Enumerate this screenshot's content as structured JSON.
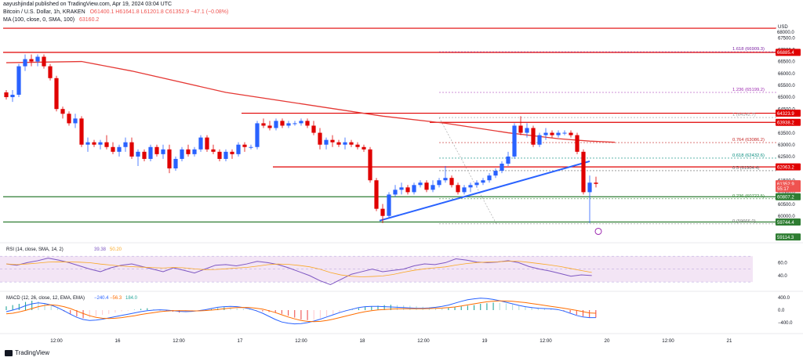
{
  "meta": {
    "author_line": "aayushjindal published on TradingView.com, Apr 19, 2024 03:04 UTC",
    "footer": "TradingView"
  },
  "header": {
    "symbol": "Bitcoin / U.S. Dollar, 1h, KRAKEN",
    "ohlc": "O61400.1 H61641.8 L61201.8 C61352.9 −47.1 (−0.08%)",
    "ma_label": "MA (100, close, 0, SMA, 100)",
    "ma_value": "63160.2",
    "colors": {
      "up": "#26a69a",
      "down": "#ef5350",
      "text": "#131722",
      "blue": "#2962ff"
    }
  },
  "chart_data": {
    "type": "candlestick",
    "title": "Bitcoin / U.S. Dollar, 1h, KRAKEN",
    "ylim": [
      59200,
      68100
    ],
    "x_ticks": [
      "12:00",
      "16",
      "12:00",
      "17",
      "12:00",
      "18",
      "12:00",
      "19",
      "12:00",
      "20",
      "12:00",
      "21"
    ],
    "y_ticks": [
      60000,
      60500,
      61000,
      61500,
      62000,
      62500,
      63000,
      63500,
      64000,
      64500,
      65000,
      65500,
      66000,
      66500,
      67000,
      67500
    ],
    "candles": [
      [
        65200,
        65300,
        64900,
        65000
      ],
      [
        65000,
        65300,
        64800,
        65100
      ],
      [
        65100,
        66400,
        65000,
        66300
      ],
      [
        66300,
        66800,
        66100,
        66600
      ],
      [
        66600,
        66800,
        66300,
        66500
      ],
      [
        66500,
        66800,
        66300,
        66700
      ],
      [
        66700,
        66800,
        66200,
        66300
      ],
      [
        66300,
        66400,
        65700,
        65800
      ],
      [
        65800,
        65900,
        64400,
        64500
      ],
      [
        64500,
        64600,
        64100,
        64300
      ],
      [
        64300,
        64400,
        63800,
        63900
      ],
      [
        63900,
        64300,
        63700,
        64100
      ],
      [
        64100,
        64200,
        62900,
        63000
      ],
      [
        63000,
        63300,
        62700,
        63100
      ],
      [
        63100,
        63200,
        62900,
        63000
      ],
      [
        63000,
        63200,
        62800,
        63100
      ],
      [
        63100,
        63400,
        62800,
        62900
      ],
      [
        62900,
        63100,
        62600,
        62700
      ],
      [
        62700,
        63000,
        62500,
        62900
      ],
      [
        62900,
        63300,
        62700,
        63100
      ],
      [
        63100,
        63300,
        62400,
        62500
      ],
      [
        62500,
        62800,
        62100,
        62700
      ],
      [
        62700,
        62800,
        62300,
        62400
      ],
      [
        62400,
        63000,
        62300,
        62900
      ],
      [
        62900,
        63000,
        62500,
        62600
      ],
      [
        62600,
        63000,
        62400,
        62800
      ],
      [
        62800,
        63000,
        61800,
        62000
      ],
      [
        62000,
        62500,
        61900,
        62400
      ],
      [
        62400,
        62900,
        62300,
        62800
      ],
      [
        62800,
        63000,
        62500,
        62600
      ],
      [
        62600,
        62900,
        62500,
        62800
      ],
      [
        62800,
        63400,
        62700,
        63300
      ],
      [
        63300,
        63400,
        62700,
        62800
      ],
      [
        62800,
        63000,
        62600,
        62700
      ],
      [
        62700,
        62800,
        62300,
        62400
      ],
      [
        62400,
        62800,
        62300,
        62700
      ],
      [
        62700,
        62800,
        62400,
        62600
      ],
      [
        62600,
        63100,
        62500,
        63000
      ],
      [
        63000,
        63100,
        62700,
        62900
      ],
      [
        62900,
        63000,
        62800,
        62900
      ],
      [
        62900,
        64000,
        62800,
        63900
      ],
      [
        63900,
        64100,
        63700,
        63800
      ],
      [
        63800,
        64000,
        63600,
        63700
      ],
      [
        63700,
        64100,
        63600,
        64000
      ],
      [
        64000,
        64100,
        63700,
        63800
      ],
      [
        63800,
        64000,
        63700,
        63900
      ],
      [
        63900,
        64000,
        63800,
        63900
      ],
      [
        63900,
        64100,
        63800,
        64000
      ],
      [
        64000,
        64100,
        63700,
        63800
      ],
      [
        63800,
        64000,
        63400,
        63500
      ],
      [
        63500,
        63700,
        62800,
        63000
      ],
      [
        63000,
        63300,
        62800,
        63200
      ],
      [
        63200,
        63400,
        62900,
        63100
      ],
      [
        63100,
        63200,
        62900,
        63000
      ],
      [
        63000,
        63300,
        62800,
        63100
      ],
      [
        63100,
        63200,
        62900,
        63000
      ],
      [
        63000,
        63100,
        62800,
        62900
      ],
      [
        62900,
        63000,
        62700,
        62800
      ],
      [
        62800,
        62900,
        61400,
        61500
      ],
      [
        61500,
        61600,
        60200,
        60300
      ],
      [
        60300,
        60500,
        59700,
        60000
      ],
      [
        60000,
        61000,
        59900,
        60900
      ],
      [
        60900,
        61300,
        60800,
        61100
      ],
      [
        61100,
        61400,
        60900,
        61200
      ],
      [
        61200,
        61300,
        60900,
        61000
      ],
      [
        61000,
        61400,
        60900,
        61300
      ],
      [
        61300,
        61500,
        61200,
        61400
      ],
      [
        61400,
        61500,
        61000,
        61100
      ],
      [
        61100,
        61500,
        61000,
        61300
      ],
      [
        61300,
        61600,
        61200,
        61500
      ],
      [
        61500,
        62100,
        61400,
        61600
      ],
      [
        61600,
        61700,
        61200,
        61300
      ],
      [
        61300,
        61400,
        60900,
        61000
      ],
      [
        61000,
        61300,
        60900,
        61200
      ],
      [
        61200,
        61400,
        61000,
        61300
      ],
      [
        61300,
        61500,
        61200,
        61400
      ],
      [
        61400,
        61600,
        61300,
        61500
      ],
      [
        61500,
        61800,
        61400,
        61700
      ],
      [
        61700,
        62000,
        61600,
        61900
      ],
      [
        61900,
        62300,
        61800,
        62200
      ],
      [
        62200,
        62700,
        62100,
        62500
      ],
      [
        62500,
        63900,
        62400,
        63800
      ],
      [
        63800,
        64200,
        63400,
        63500
      ],
      [
        63500,
        63900,
        63300,
        63700
      ],
      [
        63700,
        63800,
        62900,
        63000
      ],
      [
        63000,
        63500,
        62900,
        63400
      ],
      [
        63400,
        63700,
        63200,
        63500
      ],
      [
        63500,
        63600,
        63300,
        63400
      ],
      [
        63400,
        63600,
        63300,
        63500
      ],
      [
        63500,
        63600,
        63400,
        63500
      ],
      [
        63500,
        63600,
        63300,
        63400
      ],
      [
        63400,
        63500,
        62600,
        62700
      ],
      [
        62700,
        62800,
        60900,
        61000
      ],
      [
        61000,
        61700,
        59700,
        61400
      ],
      [
        61400,
        61650,
        61200,
        61350
      ]
    ],
    "ma_series": [
      [
        0,
        66450
      ],
      [
        12,
        66500
      ],
      [
        20,
        66100
      ],
      [
        35,
        65200
      ],
      [
        50,
        64600
      ],
      [
        60,
        64200
      ],
      [
        70,
        63900
      ],
      [
        80,
        63500
      ],
      [
        88,
        63250
      ],
      [
        93,
        63150
      ],
      [
        97,
        63100
      ]
    ],
    "horizontal_levels": [
      {
        "price": 67900,
        "label": "",
        "color": "#e00000",
        "start": 0
      },
      {
        "price": 66885.4,
        "label": "66885.4",
        "color": "#e00000",
        "start": 0
      },
      {
        "price": 64323.9,
        "label": "64323.9",
        "color": "#e00000",
        "start": 38
      },
      {
        "price": 63938.2,
        "label": "63938.2",
        "color": "#e00000",
        "start": 68
      },
      {
        "price": 62063.2,
        "label": "62063.2",
        "color": "#e00000",
        "start": 43
      },
      {
        "price": 60807.2,
        "label": "60807.2",
        "color": "#2e7d32",
        "start": 0
      },
      {
        "price": 59744.4,
        "label": "59744.4",
        "color": "#2e7d32",
        "start": 0
      }
    ],
    "trendline": {
      "from": [
        60,
        59800
      ],
      "to": [
        93,
        62300
      ]
    },
    "fibonacci": [
      {
        "ratio": "1.618",
        "price": 66909.3,
        "text": "1.618 (66909.3)",
        "color": "#7b1fa2"
      },
      {
        "ratio": "1.236",
        "price": 65199.2,
        "text": "1.236 (65199.2)",
        "color": "#9c27b0"
      },
      {
        "ratio": "1",
        "price": 64142.7,
        "text": "1 (64142.7)",
        "color": "#9e9e9e"
      },
      {
        "ratio": "0.764",
        "price": 63086.2,
        "text": "0.764 (63086.2)",
        "color": "#c62828"
      },
      {
        "ratio": "0.618",
        "price": 62432.6,
        "text": "0.618 (62432.6)",
        "color": "#00897b"
      },
      {
        "ratio": "0.5",
        "price": 61904.4,
        "text": "0.5 (61904.4)",
        "color": "#616161"
      },
      {
        "ratio": "0.236",
        "price": 60722.5,
        "text": "0.236 (60722.5)",
        "color": "#388e3c"
      },
      {
        "ratio": "0",
        "price": 59666.0,
        "text": "0 (59666.0)",
        "color": "#757575"
      }
    ],
    "price_tags": [
      {
        "text": "68000.0",
        "color": "#131722",
        "bg": "#ffffff",
        "price": 67750
      },
      {
        "text": "66885.4",
        "color": "#ffffff",
        "bg": "#e00000",
        "price": 66885.4
      },
      {
        "text": "64323.9",
        "color": "#ffffff",
        "bg": "#e00000",
        "price": 64323.9
      },
      {
        "text": "63938.2",
        "color": "#ffffff",
        "bg": "#e00000",
        "price": 63938.2
      },
      {
        "text": "62063.2",
        "color": "#ffffff",
        "bg": "#e00000",
        "price": 62063.2
      },
      {
        "text": "61352.9",
        "color": "#ffffff",
        "bg": "#ef5350",
        "price": 61352.9
      },
      {
        "text": "55:17",
        "color": "#ffffff",
        "bg": "#ef5350",
        "price": 61150
      },
      {
        "text": "60807.2",
        "color": "#ffffff",
        "bg": "#2e7d32",
        "price": 60807.2
      },
      {
        "text": "59744.4",
        "color": "#ffffff",
        "bg": "#2e7d32",
        "price": 59744.4
      },
      {
        "text": "59114.3",
        "color": "#ffffff",
        "bg": "#2e7d32",
        "price": 59114.3
      }
    ],
    "currency": "USD",
    "rsi": {
      "label": "RSI (14, close, SMA, 14, 2)",
      "value": "39.38",
      "value2": "50.20",
      "ticks": [
        60,
        40
      ],
      "ylim": [
        18,
        86
      ],
      "series": [
        58,
        56,
        60,
        63,
        67,
        64,
        60,
        55,
        50,
        46,
        52,
        56,
        58,
        54,
        50,
        46,
        52,
        48,
        44,
        50,
        56,
        57,
        55,
        58,
        62,
        60,
        57,
        52,
        46,
        40,
        32,
        26,
        34,
        42,
        46,
        50,
        46,
        48,
        50,
        55,
        58,
        57,
        60,
        66,
        64,
        61,
        60,
        61,
        63,
        60,
        54,
        50,
        47,
        43,
        39,
        41,
        40
      ]
    },
    "macd": {
      "label": "MACD (12, 26, close, 12, EMA, EMA)",
      "values": [
        "−240.4",
        "−56.3",
        "184.0"
      ],
      "ticks": [
        "400.0",
        "0.0",
        "−400.0"
      ],
      "ylim": [
        -650,
        550
      ],
      "histogram": [
        120,
        160,
        200,
        260,
        300,
        280,
        220,
        150,
        60,
        -40,
        -120,
        -200,
        -260,
        -240,
        -200,
        -150,
        -120,
        -80,
        -40,
        -20,
        10,
        40,
        60,
        30,
        -10,
        -30,
        -50,
        -80,
        -60,
        -40,
        -20,
        0,
        30,
        60,
        90,
        80,
        60,
        40,
        20,
        -10,
        -40,
        -60,
        -80,
        -120,
        -180,
        -240,
        -300,
        -320,
        -300,
        -260,
        -200,
        -140,
        -80,
        -30,
        10,
        60,
        100,
        120,
        140,
        160,
        170,
        160,
        150,
        140,
        130,
        110,
        90,
        70,
        60,
        80,
        100,
        120,
        140,
        160,
        200,
        220,
        240,
        230,
        210,
        180,
        150,
        120,
        100,
        80,
        60,
        40,
        20,
        -20,
        -80,
        -150,
        -200,
        -240,
        -240
      ],
      "macd_line": [
        -50,
        0,
        60,
        140,
        200,
        230,
        210,
        160,
        80,
        -20,
        -130,
        -230,
        -300,
        -330,
        -320,
        -290,
        -250,
        -210,
        -170,
        -130,
        -90,
        -50,
        -20,
        0,
        10,
        0,
        -20,
        -40,
        -50,
        -40,
        -20,
        10,
        50,
        90,
        110,
        120,
        110,
        80,
        40,
        -20,
        -100,
        -200,
        -300,
        -380,
        -420,
        -440,
        -430,
        -400,
        -350,
        -290,
        -220,
        -150,
        -80,
        -20,
        30,
        80,
        110,
        120,
        120,
        110,
        100,
        90,
        80,
        70,
        60,
        60,
        70,
        90,
        120,
        160,
        220,
        280,
        330,
        360,
        380,
        370,
        340,
        300,
        250,
        200,
        150,
        110,
        80,
        60,
        50,
        40,
        20,
        -30,
        -100,
        -170,
        -220,
        -240,
        -240
      ],
      "signal_line": [
        -120,
        -100,
        -60,
        -10,
        50,
        110,
        150,
        170,
        150,
        110,
        50,
        -30,
        -110,
        -180,
        -230,
        -260,
        -270,
        -260,
        -240,
        -210,
        -180,
        -140,
        -110,
        -80,
        -50,
        -30,
        -20,
        -20,
        -20,
        -25,
        -25,
        -15,
        0,
        20,
        45,
        65,
        80,
        85,
        80,
        60,
        30,
        -20,
        -80,
        -150,
        -220,
        -280,
        -330,
        -360,
        -370,
        -360,
        -330,
        -290,
        -240,
        -190,
        -140,
        -90,
        -50,
        -20,
        5,
        20,
        30,
        40,
        45,
        45,
        45,
        45,
        50,
        55,
        65,
        80,
        100,
        130,
        165,
        200,
        235,
        265,
        285,
        295,
        290,
        280,
        260,
        240,
        210,
        180,
        150,
        120,
        90,
        60,
        25,
        -10,
        -50,
        -90,
        -100
      ]
    }
  }
}
